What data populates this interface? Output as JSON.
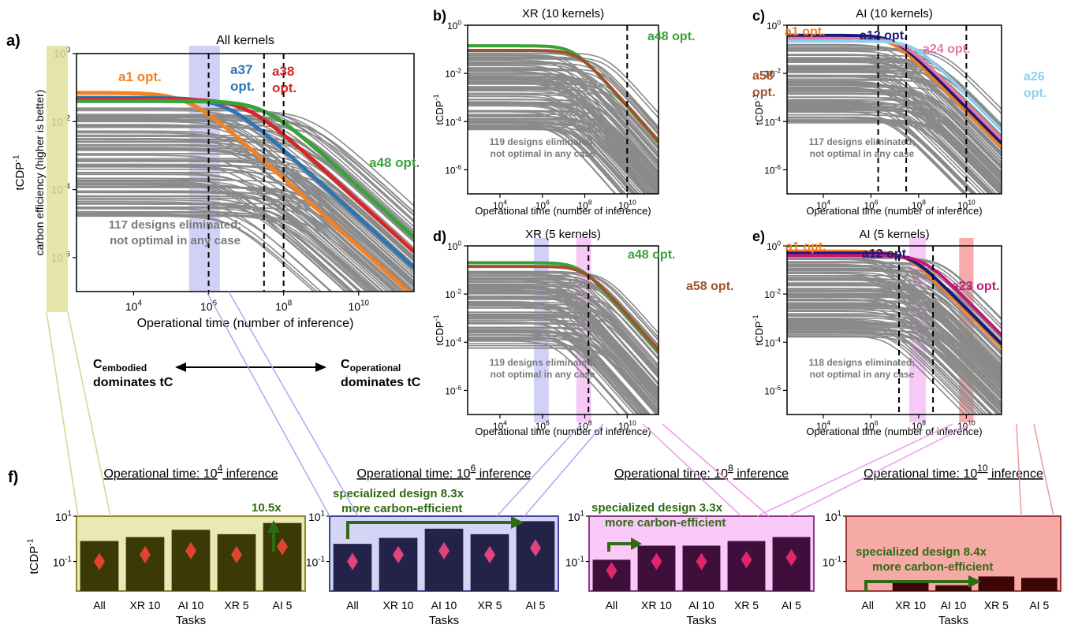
{
  "panels": [
    {
      "id": "a",
      "letter": "a)",
      "title": "All kernels",
      "ylabel1": "carbon efficiency (higher is better)",
      "ylabel2": "tCDP",
      "ylabel_sup": "-1",
      "xlabel": "Operational time (number of inference)",
      "eliminated1": "117 designs eliminated;",
      "eliminated2": "not optimal in any case",
      "vlines": [
        1000000.0,
        30000000.0,
        100000000.0
      ],
      "bands": [
        {
          "from": 300000.0,
          "to": 2000000.0,
          "color": "#9999ee"
        }
      ],
      "labels": [
        {
          "l1": "a1 opt.",
          "l2": "",
          "color": "#f5801f"
        },
        {
          "l1": "a37",
          "l2": "opt.",
          "color": "#2e75b6"
        },
        {
          "l1": "a38",
          "l2": "opt.",
          "color": "#d62728"
        },
        {
          "l1": "a48 opt.",
          "l2": "",
          "color": "#3aa13a"
        }
      ]
    },
    {
      "id": "b",
      "letter": "b)",
      "title": "XR (10 kernels)",
      "ylabel2": "tCDP",
      "ylabel_sup": "-1",
      "xlabel": "Operational time (number of inference)",
      "eliminated1": "119 designs eliminated;",
      "eliminated2": "not optimal in any case",
      "vlines": [
        10000000000.0
      ],
      "bands": [],
      "labels": [
        {
          "l1": "a48 opt.",
          "l2": "",
          "color": "#3aa13a"
        },
        {
          "l1": "a58",
          "l2": "opt.",
          "color": "#a0522d"
        }
      ]
    },
    {
      "id": "c",
      "letter": "c)",
      "title": "AI (10 kernels)",
      "ylabel2": "tCDP",
      "ylabel_sup": "-1",
      "xlabel": "Operational time (number of inference)",
      "eliminated1": "117 designs eliminated;",
      "eliminated2": "not optimal in any case",
      "vlines": [
        2000000.0,
        30000000.0,
        10000000000.0
      ],
      "bands": [],
      "labels": [
        {
          "l1": "a1 opt.",
          "l2": "",
          "color": "#f5801f"
        },
        {
          "l1": "a12 opt.",
          "l2": "",
          "color": "#1a1a7a"
        },
        {
          "l1": "a24 opt.",
          "l2": "",
          "color": "#e377a8"
        },
        {
          "l1": "a26",
          "l2": "opt.",
          "color": "#8ecfee"
        }
      ]
    },
    {
      "id": "d",
      "letter": "d)",
      "title": "XR (5 kernels)",
      "ylabel2": "tCDP",
      "ylabel_sup": "-1",
      "xlabel": "Operational time (number of inference)",
      "eliminated1": "119 designs eliminated;",
      "eliminated2": "not optimal in any case",
      "vlines": [
        150000000.0
      ],
      "bands": [
        {
          "from": 400000.0,
          "to": 2000000.0,
          "color": "#9999ee"
        },
        {
          "from": 40000000.0,
          "to": 200000000.0,
          "color": "#ee88ee"
        }
      ],
      "labels": [
        {
          "l1": "a48 opt.",
          "l2": "",
          "color": "#3aa13a"
        },
        {
          "l1": "a58 opt.",
          "l2": "",
          "color": "#a0522d"
        }
      ]
    },
    {
      "id": "e",
      "letter": "e)",
      "title": "AI (5 kernels)",
      "ylabel2": "tCDP",
      "ylabel_sup": "-1",
      "xlabel": "Operational time (number of inference)",
      "eliminated1": "118 designs eliminated;",
      "eliminated2": "not optimal in any case",
      "vlines": [
        15000000.0,
        400000000.0
      ],
      "bands": [
        {
          "from": 40000000.0,
          "to": 200000000.0,
          "color": "#ee88ee"
        },
        {
          "from": 5000000000.0,
          "to": 20000000000.0,
          "color": "#ee4444"
        }
      ],
      "labels": [
        {
          "l1": "a1 opt.",
          "l2": "",
          "color": "#f5801f"
        },
        {
          "l1": "a12 opt.",
          "l2": "",
          "color": "#1a1a7a"
        },
        {
          "l1": "a23 opt.",
          "l2": "",
          "color": "#c2187a"
        }
      ]
    }
  ],
  "dominance": {
    "left_main": "C",
    "left_sub": "embodied",
    "left_line2": "dominates tC",
    "right_main": "C",
    "right_sub": "operational",
    "right_line2": "dominates tC"
  },
  "panel_f": {
    "letter": "f)",
    "ylabel": "tCDP",
    "ylabel_sup": "-1",
    "xlabel": "Tasks",
    "groups": [
      {
        "title_pre": "Operational time: 10",
        "title_exp": "4",
        "title_post": " inference",
        "bg": "#ebe9b3",
        "bar": "#3a3a07",
        "border": "#8c8a2a",
        "diamond": "#e0442f",
        "annotation1": "10.5x",
        "annotation2": ""
      },
      {
        "title_pre": "Operational time: 10",
        "title_exp": "6",
        "title_post": " inference",
        "bg": "#d4d4f7",
        "bar": "#23234a",
        "border": "#4545a0",
        "diamond": "#e0447a",
        "annotation1": "specialized design 8.3x",
        "annotation2": "more carbon-efficient"
      },
      {
        "title_pre": "Operational time: 10",
        "title_exp": "8",
        "title_post": " inference",
        "bg": "#f9c9f7",
        "bar": "#3d0f3a",
        "border": "#8a3b87",
        "diamond": "#e0256a",
        "annotation1": "specialized design 3.3x",
        "annotation2": "more carbon-efficient"
      },
      {
        "title_pre": "Operational time: 10",
        "title_exp": "10",
        "title_post": " inference",
        "bg": "#f6aaa6",
        "bar": "#3d0606",
        "border": "#9a3a3a",
        "diamond": "",
        "annotation1": "specialized design 8.4x",
        "annotation2": "more carbon-efficient"
      }
    ]
  },
  "chart_data": [
    {
      "panel": "a",
      "type": "line",
      "title": "All kernels",
      "xlabel": "Operational time (number of inference)",
      "ylabel": "carbon efficiency (higher is better) tCDP-1",
      "xscale": "log",
      "yscale": "log",
      "xlim": [
        300.0,
        300000000000.0
      ],
      "ylim": [
        1e-07,
        1
      ],
      "series": [
        {
          "name": "a1 opt.",
          "plateau": 0.07,
          "knee": 300000.0
        },
        {
          "name": "a37 opt.",
          "plateau": 0.05,
          "knee": 3000000.0
        },
        {
          "name": "a38 opt.",
          "plateau": 0.045,
          "knee": 10000000.0
        },
        {
          "name": "a48 opt.",
          "plateau": 0.04,
          "knee": 30000000.0
        }
      ]
    },
    {
      "panel": "b",
      "type": "line",
      "title": "XR (10 kernels)",
      "xlabel": "Operational time (number of inference)",
      "ylabel": "tCDP-1",
      "xscale": "log",
      "yscale": "log",
      "xlim": [
        300.0,
        300000000000.0
      ],
      "ylim": [
        1e-07,
        1
      ],
      "series": [
        {
          "name": "a48 opt.",
          "plateau": 0.14,
          "knee": 30000000.0
        },
        {
          "name": "a58 opt.",
          "plateau": 0.09,
          "knee": 50000000.0
        }
      ]
    },
    {
      "panel": "c",
      "type": "line",
      "title": "AI (10 kernels)",
      "xlabel": "Operational time (number of inference)",
      "ylabel": "tCDP-1",
      "xscale": "log",
      "yscale": "log",
      "xlim": [
        300.0,
        300000000000.0
      ],
      "ylim": [
        1e-07,
        1
      ],
      "series": [
        {
          "name": "a1 opt.",
          "plateau": 0.32,
          "knee": 8000000.0
        },
        {
          "name": "a12 opt.",
          "plateau": 0.38,
          "knee": 10000000.0
        },
        {
          "name": "a24 opt.",
          "plateau": 0.28,
          "knee": 20000000.0
        },
        {
          "name": "a26 opt.",
          "plateau": 0.22,
          "knee": 60000000.0
        }
      ]
    },
    {
      "panel": "d",
      "type": "line",
      "title": "XR (5 kernels)",
      "xlabel": "Operational time (number of inference)",
      "ylabel": "tCDP-1",
      "xscale": "log",
      "yscale": "log",
      "xlim": [
        300.0,
        300000000000.0
      ],
      "ylim": [
        1e-07,
        1
      ],
      "series": [
        {
          "name": "a48 opt.",
          "plateau": 0.2,
          "knee": 60000000.0
        },
        {
          "name": "a58 opt.",
          "plateau": 0.14,
          "knee": 100000000.0
        }
      ]
    },
    {
      "panel": "e",
      "type": "line",
      "title": "AI (5 kernels)",
      "xlabel": "Operational time (number of inference)",
      "ylabel": "tCDP-1",
      "xscale": "log",
      "yscale": "log",
      "xlim": [
        300.0,
        300000000000.0
      ],
      "ylim": [
        1e-07,
        1
      ],
      "series": [
        {
          "name": "a1 opt.",
          "plateau": 0.6,
          "knee": 30000000.0
        },
        {
          "name": "a12 opt.",
          "plateau": 0.5,
          "knee": 50000000.0
        },
        {
          "name": "a23 opt.",
          "plateau": 0.4,
          "knee": 150000000.0
        }
      ]
    },
    {
      "panel": "f",
      "type": "bar",
      "xlabel": "Tasks",
      "ylabel": "tCDP-1",
      "yscale": "log",
      "ylim": [
        0.005,
        10
      ],
      "categories": [
        "All",
        "XR 10",
        "AI 10",
        "XR 5",
        "AI 5"
      ],
      "groups": [
        {
          "title": "Operational time: 10^4 inference",
          "values": [
            0.8,
            1.2,
            2.5,
            1.6,
            5.0
          ],
          "diamonds": [
            0.1,
            0.2,
            0.3,
            0.2,
            0.45
          ]
        },
        {
          "title": "Operational time: 10^6 inference",
          "values": [
            0.6,
            1.1,
            2.8,
            1.6,
            6.0
          ],
          "diamonds": [
            0.1,
            0.2,
            0.3,
            0.2,
            0.4
          ]
        },
        {
          "title": "Operational time: 10^8 inference",
          "values": [
            0.12,
            0.5,
            0.5,
            0.8,
            1.2
          ],
          "diamonds": [
            0.04,
            0.1,
            0.1,
            0.12,
            0.15
          ]
        },
        {
          "title": "Operational time: 10^10 inference",
          "values": [
            0,
            0.012,
            0.009,
            0.022,
            0.019
          ]
        }
      ]
    }
  ]
}
